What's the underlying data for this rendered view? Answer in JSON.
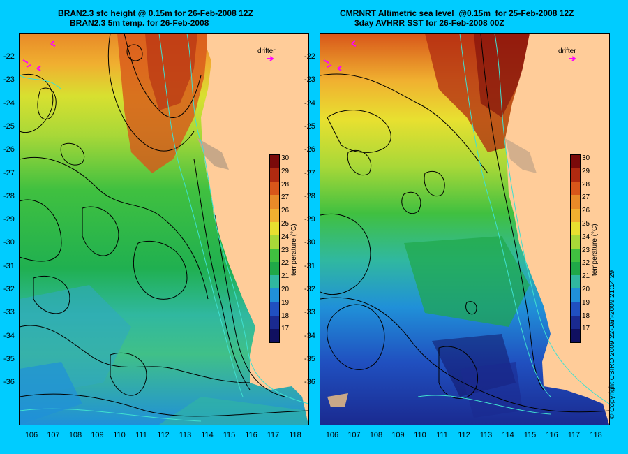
{
  "left_panel": {
    "title_line1": "BRAN2.3 sfc height @ 0.15m for 26-Feb-2008 12Z",
    "title_line2": "BRAN2.3 5m temp. for 26-Feb-2008"
  },
  "right_panel": {
    "title_line1": "CMRNRT Altimetric sea level  @0.15m  for 25-Feb-2008 12Z",
    "title_line2": "3day AVHRR SST for 26-Feb-2008 00Z"
  },
  "drifter_label": "drifter",
  "latitudes": [
    "-22",
    "-23",
    "-24",
    "-25",
    "-26",
    "-27",
    "-28",
    "-29",
    "-30",
    "-31",
    "-32",
    "-33",
    "-34",
    "-35",
    "-36"
  ],
  "longitudes": [
    "106",
    "107",
    "108",
    "109",
    "110",
    "111",
    "112",
    "113",
    "114",
    "115",
    "116",
    "117",
    "118"
  ],
  "colorbar": {
    "title": "temperature (°C)",
    "ticks": [
      "30",
      "29",
      "28",
      "27",
      "26",
      "25",
      "24",
      "23",
      "22",
      "21",
      "20",
      "19",
      "18",
      "17"
    ],
    "colors": [
      "#7a0a0a",
      "#b02a10",
      "#d8561a",
      "#e88a28",
      "#f0b030",
      "#e8e030",
      "#a8d838",
      "#40c040",
      "#20a848",
      "#30b8a0",
      "#2090d8",
      "#2050c0",
      "#1a2a90",
      "#101060"
    ]
  },
  "colors": {
    "background": "#00CCFF",
    "land": "#FFCC99",
    "contour": "#000000",
    "isobath": "#40E0D0",
    "drifter": "#FF00FF"
  },
  "copyright": "© Copyright CSIRO 2009    22-Jan-2009 21:14:29"
}
